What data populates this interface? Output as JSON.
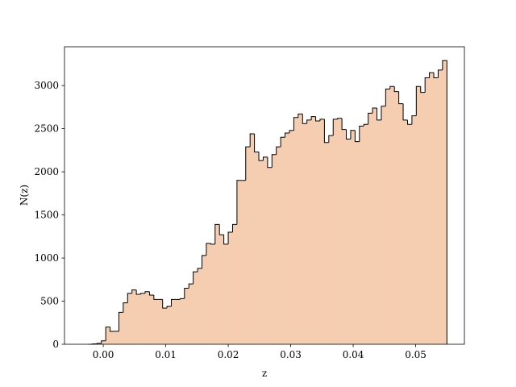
{
  "chart_data": {
    "type": "histogram",
    "xlabel": "z",
    "ylabel": "N(z)",
    "bins": [
      -0.0024,
      -0.0017,
      -0.001,
      -0.0003,
      0.0004,
      0.0011,
      0.0018,
      0.0025,
      0.0032,
      0.0039,
      0.0046,
      0.0053,
      0.006,
      0.0067,
      0.0074,
      0.0081,
      0.0088,
      0.0095,
      0.0102,
      0.0109,
      0.0116,
      0.0123,
      0.013,
      0.0137,
      0.0144,
      0.0151,
      0.0158,
      0.0165,
      0.0172,
      0.0179,
      0.0186,
      0.0193,
      0.02,
      0.0207,
      0.0214,
      0.0221,
      0.0228,
      0.0235,
      0.0242,
      0.0249,
      0.0256,
      0.0263,
      0.027,
      0.0277,
      0.0284,
      0.0291,
      0.0298,
      0.0305,
      0.0312,
      0.0319,
      0.0326,
      0.0333,
      0.034,
      0.0347,
      0.0354,
      0.0361,
      0.0368,
      0.0375,
      0.0382,
      0.0389,
      0.0396,
      0.0403,
      0.041,
      0.0417,
      0.0424,
      0.0431,
      0.0438,
      0.0445,
      0.0452,
      0.0459,
      0.0466,
      0.0473,
      0.048,
      0.0487,
      0.0494,
      0.0501,
      0.0508,
      0.0515,
      0.0522,
      0.0529,
      0.0536,
      0.0543,
      0.055
    ],
    "values": [
      0,
      5,
      10,
      40,
      200,
      150,
      150,
      370,
      480,
      590,
      630,
      580,
      590,
      610,
      570,
      520,
      520,
      420,
      440,
      520,
      520,
      530,
      650,
      700,
      840,
      880,
      1030,
      1170,
      1160,
      1390,
      1270,
      1160,
      1300,
      1390,
      1900,
      1900,
      2290,
      2440,
      2230,
      2130,
      2170,
      2050,
      2200,
      2290,
      2400,
      2450,
      2480,
      2630,
      2670,
      2560,
      2600,
      2640,
      2590,
      2610,
      2340,
      2420,
      2610,
      2620,
      2490,
      2380,
      2480,
      2350,
      2530,
      2550,
      2680,
      2740,
      2600,
      2760,
      2960,
      2990,
      2930,
      2790,
      2600,
      2550,
      2650,
      2990,
      2920,
      3090,
      3150,
      3090,
      3180,
      3290
    ],
    "color": "#f5cdb0",
    "edgecolor": "#000000",
    "xlim": [
      -0.0062,
      0.0578
    ],
    "xticks": [
      {
        "value": 0,
        "label": "0.00"
      },
      0.01,
      0.02,
      0.03,
      0.04,
      0.05
    ],
    "ylim": [
      0,
      3450
    ],
    "yticks": [
      0,
      500,
      1000,
      1500,
      2000,
      2500,
      3000
    ],
    "grid": false
  }
}
